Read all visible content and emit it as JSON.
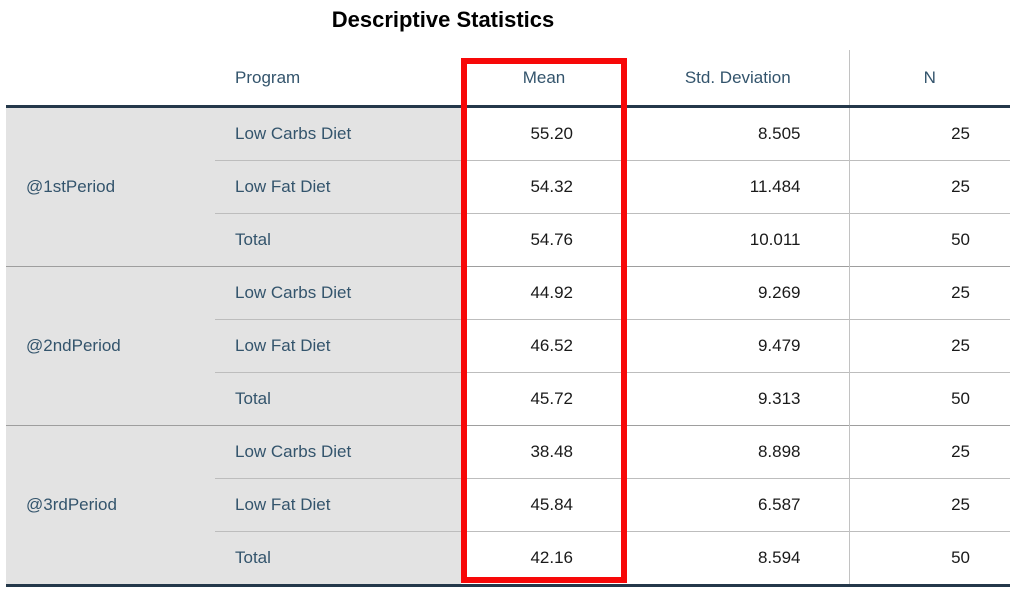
{
  "title": "Descriptive Statistics",
  "table": {
    "headers": {
      "period": "",
      "program": "Program",
      "mean": "Mean",
      "std": "Std. Deviation",
      "n": "N"
    },
    "blocks": [
      {
        "period": "@1stPeriod",
        "rows": [
          {
            "program": "Low Carbs Diet",
            "mean": "55.20",
            "std": "8.505",
            "n": "25"
          },
          {
            "program": "Low Fat Diet",
            "mean": "54.32",
            "std": "11.484",
            "n": "25"
          },
          {
            "program": "Total",
            "mean": "54.76",
            "std": "10.011",
            "n": "50"
          }
        ]
      },
      {
        "period": "@2ndPeriod",
        "rows": [
          {
            "program": "Low Carbs Diet",
            "mean": "44.92",
            "std": "9.269",
            "n": "25"
          },
          {
            "program": "Low Fat Diet",
            "mean": "46.52",
            "std": "9.479",
            "n": "25"
          },
          {
            "program": "Total",
            "mean": "45.72",
            "std": "9.313",
            "n": "50"
          }
        ]
      },
      {
        "period": "@3rdPeriod",
        "rows": [
          {
            "program": "Low Carbs Diet",
            "mean": "38.48",
            "std": "8.898",
            "n": "25"
          },
          {
            "program": "Low Fat Diet",
            "mean": "45.84",
            "std": "6.587",
            "n": "25"
          },
          {
            "program": "Total",
            "mean": "42.16",
            "std": "8.594",
            "n": "50"
          }
        ]
      }
    ]
  },
  "highlight": {
    "target_column": "Mean",
    "color": "#f70808"
  },
  "colors": {
    "header_text": "#33546c",
    "label_background": "#e3e3e3",
    "heavy_rule": "#24384a",
    "inner_rule": "#bdbdbd",
    "block_rule": "#9e9e9e",
    "value_text": "#1a1a1a"
  },
  "chart_data": {
    "type": "table",
    "title": "Descriptive Statistics",
    "columns": [
      "",
      "Program",
      "Mean",
      "Std. Deviation",
      "N"
    ],
    "rows": [
      [
        "@1stPeriod",
        "Low Carbs Diet",
        55.2,
        8.505,
        25
      ],
      [
        "@1stPeriod",
        "Low Fat Diet",
        54.32,
        11.484,
        25
      ],
      [
        "@1stPeriod",
        "Total",
        54.76,
        10.011,
        50
      ],
      [
        "@2ndPeriod",
        "Low Carbs Diet",
        44.92,
        9.269,
        25
      ],
      [
        "@2ndPeriod",
        "Low Fat Diet",
        46.52,
        9.479,
        25
      ],
      [
        "@2ndPeriod",
        "Total",
        45.72,
        9.313,
        50
      ],
      [
        "@3rdPeriod",
        "Low Carbs Diet",
        38.48,
        8.898,
        25
      ],
      [
        "@3rdPeriod",
        "Low Fat Diet",
        45.84,
        6.587,
        25
      ],
      [
        "@3rdPeriod",
        "Total",
        42.16,
        8.594,
        50
      ]
    ],
    "annotations": [
      "red rectangle highlighting the Mean column"
    ]
  }
}
